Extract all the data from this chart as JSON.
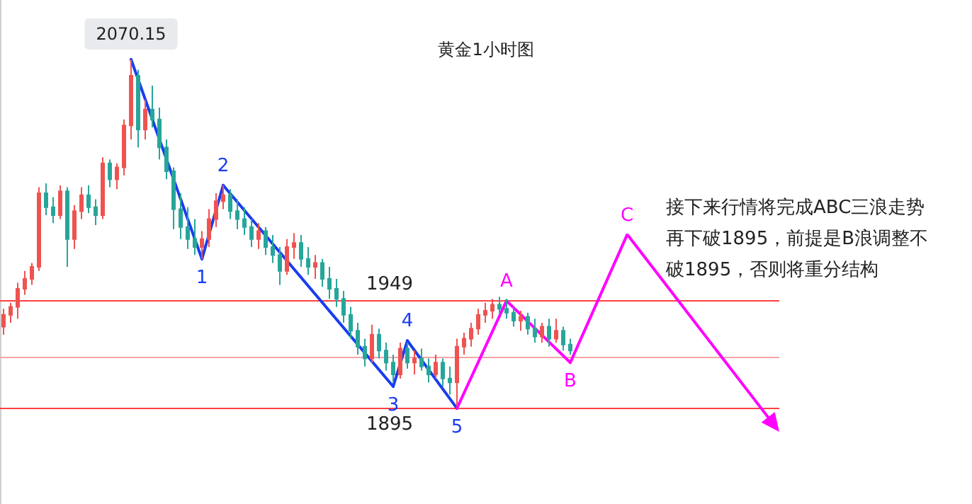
{
  "chart_data": {
    "type": "candlestick",
    "title": "黄金1小时图",
    "categories": [
      null,
      null,
      null,
      null,
      null,
      null,
      null,
      null,
      null,
      null,
      null,
      null,
      null,
      null,
      null,
      null,
      null,
      null,
      null,
      null,
      null,
      null,
      null,
      null,
      null,
      null,
      null,
      null,
      null,
      null,
      null,
      null,
      null,
      null,
      null,
      null,
      null,
      null,
      null,
      null,
      null,
      null,
      null,
      null,
      null,
      null,
      null,
      null,
      null,
      null,
      null,
      null,
      null,
      null,
      null,
      null,
      null,
      null,
      null,
      null,
      null,
      null,
      null,
      null,
      null,
      null,
      null,
      null,
      null,
      null,
      null,
      null,
      null,
      null,
      null,
      null,
      null,
      null,
      null,
      null,
      null,
      null,
      null,
      null,
      null,
      null,
      null,
      null,
      null,
      null,
      null,
      null,
      null,
      null,
      null,
      null,
      null,
      null,
      null,
      null,
      null,
      null,
      null,
      null,
      null,
      null,
      null,
      null,
      null,
      null
    ],
    "series": [
      {
        "ohlc": [
          [
            1936,
            1945,
            1932,
            1942
          ],
          [
            1942,
            1948,
            1938,
            1946
          ],
          [
            1946,
            1958,
            1940,
            1955
          ],
          [
            1955,
            1964,
            1952,
            1960
          ],
          [
            1960,
            1968,
            1957,
            1966
          ],
          [
            1966,
            2006,
            1964,
            2003
          ],
          [
            2003,
            2008,
            1992,
            1996
          ],
          [
            1996,
            2001,
            1988,
            1992
          ],
          [
            1992,
            2007,
            1990,
            2004
          ],
          [
            2004,
            2006,
            1966,
            1980
          ],
          [
            1980,
            1997,
            1975,
            1994
          ],
          [
            1994,
            2006,
            1990,
            2002
          ],
          [
            2002,
            2007,
            1993,
            1996
          ],
          [
            1996,
            2000,
            1987,
            1992
          ],
          [
            1992,
            2021,
            1990,
            2018
          ],
          [
            2018,
            2020,
            2006,
            2010
          ],
          [
            2010,
            2018,
            2005,
            2016
          ],
          [
            2016,
            2040,
            2012,
            2037
          ],
          [
            2037,
            2070.15,
            2030,
            2062
          ],
          [
            2062,
            2065,
            2026,
            2035
          ],
          [
            2035,
            2050,
            2030,
            2045
          ],
          [
            2045,
            2057,
            2036,
            2040
          ],
          [
            2040,
            2046,
            2020,
            2026
          ],
          [
            2026,
            2030,
            2010,
            2014
          ],
          [
            2014,
            2016,
            1985,
            1995
          ],
          [
            1995,
            2003,
            1980,
            1986
          ],
          [
            1986,
            1996,
            1975,
            1980
          ],
          [
            1980,
            1990,
            1972,
            1976
          ],
          [
            1976,
            1984,
            1970,
            1980
          ],
          [
            1980,
            1995,
            1976,
            1990
          ],
          [
            1990,
            2003,
            1986,
            1999
          ],
          [
            1999,
            2007,
            1995,
            2002
          ],
          [
            2002,
            2005,
            1990,
            1994
          ],
          [
            1994,
            2000,
            1985,
            1990
          ],
          [
            1990,
            1996,
            1982,
            1986
          ],
          [
            1986,
            1990,
            1976,
            1980
          ],
          [
            1980,
            1988,
            1975,
            1984
          ],
          [
            1984,
            1986,
            1972,
            1976
          ],
          [
            1976,
            1982,
            1968,
            1972
          ],
          [
            1972,
            1976,
            1957,
            1964
          ],
          [
            1964,
            1980,
            1962,
            1976
          ],
          [
            1976,
            1983,
            1970,
            1978
          ],
          [
            1978,
            1982,
            1966,
            1970
          ],
          [
            1970,
            1976,
            1962,
            1966
          ],
          [
            1966,
            1972,
            1960,
            1968
          ],
          [
            1968,
            1970,
            1956,
            1960
          ],
          [
            1960,
            1966,
            1950,
            1955
          ],
          [
            1955,
            1960,
            1946,
            1950
          ],
          [
            1950,
            1954,
            1938,
            1942
          ],
          [
            1942,
            1946,
            1930,
            1934
          ],
          [
            1934,
            1938,
            1922,
            1926
          ],
          [
            1926,
            1930,
            1916,
            1920
          ],
          [
            1920,
            1937,
            1918,
            1932
          ],
          [
            1932,
            1935,
            1920,
            1924
          ],
          [
            1924,
            1928,
            1914,
            1918
          ],
          [
            1918,
            1922,
            1908,
            1912
          ],
          [
            1912,
            1928,
            1910,
            1925
          ],
          [
            1925,
            1928,
            1915,
            1918
          ],
          [
            1918,
            1924,
            1912,
            1920
          ],
          [
            1920,
            1925,
            1914,
            1916
          ],
          [
            1916,
            1920,
            1908,
            1912
          ],
          [
            1912,
            1922,
            1910,
            1918
          ],
          [
            1918,
            1920,
            1906,
            1910
          ],
          [
            1910,
            1916,
            1902,
            1908
          ],
          [
            1908,
            1930,
            1896,
            1926
          ],
          [
            1926,
            1933,
            1922,
            1930
          ],
          [
            1930,
            1938,
            1926,
            1935
          ],
          [
            1935,
            1945,
            1932,
            1942
          ],
          [
            1942,
            1948,
            1938,
            1944
          ],
          [
            1944,
            1950,
            1940,
            1947
          ],
          [
            1947,
            1951,
            1942,
            1945
          ],
          [
            1945,
            1950,
            1940,
            1943
          ],
          [
            1943,
            1946,
            1936,
            1939
          ],
          [
            1939,
            1944,
            1934,
            1941
          ],
          [
            1941,
            1943,
            1932,
            1935
          ],
          [
            1935,
            1940,
            1928,
            1931
          ],
          [
            1931,
            1938,
            1928,
            1936
          ],
          [
            1936,
            1940,
            1926,
            1930
          ],
          [
            1930,
            1940,
            1928,
            1934
          ],
          [
            1934,
            1936,
            1924,
            1927
          ],
          [
            1927,
            1930,
            1922,
            1924
          ],
          null,
          null,
          null,
          null,
          null,
          null,
          null,
          null,
          null,
          null,
          null,
          null,
          null,
          null,
          null,
          null,
          null,
          null,
          null,
          null,
          null,
          null,
          null,
          null,
          null,
          null,
          null,
          null,
          null
        ],
        "colors": [
          "#ef5350",
          "#ef5350",
          "#ef5350",
          "#ef5350",
          "#ef5350",
          "#ef5350",
          "#26a69a",
          "#26a69a",
          "#ef5350",
          "#26a69a",
          "#ef5350",
          "#ef5350",
          "#26a69a",
          "#26a69a",
          "#ef5350",
          "#26a69a",
          "#ef5350",
          "#ef5350",
          "#ef5350",
          "#26a69a",
          "#ef5350",
          "#26a69a",
          "#26a69a",
          "#26a69a",
          "#26a69a",
          "#26a69a",
          "#26a69a",
          "#26a69a",
          "#ef5350",
          "#ef5350",
          "#ef5350",
          "#ef5350",
          "#26a69a",
          "#26a69a",
          "#26a69a",
          "#26a69a",
          "#ef5350",
          "#26a69a",
          "#26a69a",
          "#26a69a",
          "#ef5350",
          "#ef5350",
          "#26a69a",
          "#26a69a",
          "#ef5350",
          "#26a69a",
          "#26a69a",
          "#26a69a",
          "#26a69a",
          "#26a69a",
          "#26a69a",
          "#26a69a",
          "#ef5350",
          "#26a69a",
          "#26a69a",
          "#26a69a",
          "#ef5350",
          "#26a69a",
          "#ef5350",
          "#26a69a",
          "#26a69a",
          "#ef5350",
          "#26a69a",
          "#26a69a",
          "#ef5350",
          "#ef5350",
          "#ef5350",
          "#ef5350",
          "#ef5350",
          "#ef5350",
          "#26a69a",
          "#26a69a",
          "#26a69a",
          "#ef5350",
          "#26a69a",
          "#26a69a",
          "#ef5350",
          "#26a69a",
          "#ef5350",
          "#26a69a",
          "#26a69a",
          null,
          null,
          null,
          null,
          null,
          null,
          null,
          null,
          null,
          null,
          null,
          null,
          null,
          null,
          null,
          null,
          null,
          null,
          null,
          null,
          null,
          null,
          null,
          null,
          null,
          null,
          null,
          null,
          null
        ]
      },
      {
        "type": "line",
        "color": "#1a3cf0",
        "values": [
          null,
          null,
          null,
          null,
          null,
          null,
          null,
          null,
          null,
          null,
          null,
          null,
          null,
          null,
          null,
          null,
          null,
          null,
          2070.15,
          null,
          null,
          null,
          null,
          null,
          null,
          null,
          null,
          null,
          1970,
          null,
          null,
          2007,
          null,
          null,
          null,
          null,
          null,
          null,
          null,
          null,
          null,
          null,
          null,
          null,
          null,
          null,
          null,
          null,
          null,
          null,
          null,
          null,
          null,
          null,
          null,
          1906,
          null,
          1929,
          null,
          null,
          null,
          null,
          null,
          null,
          1895,
          null,
          null,
          null,
          null,
          null,
          null,
          null,
          null,
          null,
          null,
          null,
          null,
          null,
          null,
          null,
          null,
          null,
          null,
          null,
          null,
          null,
          null,
          null,
          null,
          null,
          null,
          null,
          null,
          null,
          null,
          null,
          null,
          null,
          null,
          null,
          null,
          null,
          null,
          null,
          null,
          null,
          null,
          null,
          null,
          null
        ],
        "value_labels": [
          null,
          null,
          null,
          null,
          null,
          null,
          null,
          null,
          null,
          null,
          null,
          null,
          null,
          null,
          null,
          null,
          null,
          null,
          "2070.15",
          null,
          null,
          null,
          null,
          null,
          null,
          null,
          null,
          null,
          null,
          null,
          null,
          null,
          null,
          null,
          null,
          null,
          null,
          null,
          null,
          null,
          null,
          null,
          null,
          null,
          null,
          null,
          null,
          null,
          null,
          null,
          null,
          null,
          null,
          null,
          null,
          null,
          null,
          null,
          null,
          null,
          null,
          null,
          null,
          null,
          null,
          null,
          null,
          null,
          null,
          null,
          null,
          null,
          null,
          null,
          null,
          null,
          null,
          null,
          null,
          null,
          null,
          null,
          null,
          null,
          null,
          null,
          null,
          null,
          null,
          null,
          null,
          null,
          null,
          null,
          null,
          null,
          null,
          null,
          null,
          null,
          null,
          null,
          null,
          null,
          null,
          null,
          null,
          null,
          null,
          null
        ]
      },
      {
        "type": "line",
        "color": "#ff00ff",
        "values": [
          null,
          null,
          null,
          null,
          null,
          null,
          null,
          null,
          null,
          null,
          null,
          null,
          null,
          null,
          null,
          null,
          null,
          null,
          null,
          null,
          null,
          null,
          null,
          null,
          null,
          null,
          null,
          null,
          null,
          null,
          null,
          null,
          null,
          null,
          null,
          null,
          null,
          null,
          null,
          null,
          null,
          null,
          null,
          null,
          null,
          null,
          null,
          null,
          null,
          null,
          null,
          null,
          null,
          null,
          null,
          null,
          null,
          null,
          null,
          null,
          null,
          null,
          null,
          null,
          1895,
          null,
          null,
          null,
          null,
          null,
          null,
          1949,
          null,
          null,
          null,
          null,
          null,
          null,
          null,
          null,
          1918,
          null,
          null,
          null,
          null,
          null,
          null,
          null,
          1982,
          null,
          null,
          null,
          null,
          null,
          null,
          null,
          null,
          null,
          null,
          null,
          null,
          null,
          null,
          null,
          null,
          null,
          null,
          null,
          null,
          null
        ],
        "value_labels": [
          null,
          null,
          null,
          null,
          null,
          null,
          null,
          null,
          null,
          null,
          null,
          null,
          null,
          null,
          null,
          null,
          null,
          null,
          null,
          null,
          null,
          null,
          null,
          null,
          null,
          null,
          null,
          null,
          null,
          null,
          null,
          null,
          null,
          null,
          null,
          null,
          null,
          null,
          null,
          null,
          null,
          null,
          null,
          null,
          null,
          null,
          null,
          null,
          null,
          null,
          null,
          null,
          null,
          null,
          null,
          null,
          null,
          null,
          null,
          null,
          null,
          null,
          null,
          null,
          null,
          null,
          null,
          null,
          null,
          null,
          null,
          null,
          null,
          null,
          null,
          null,
          null,
          null,
          null,
          null,
          null,
          null,
          null,
          null,
          null,
          null,
          null,
          null,
          null,
          null,
          null,
          null,
          null,
          null,
          null,
          null,
          null,
          null,
          null,
          null,
          null,
          null,
          null,
          null,
          null,
          null,
          null,
          null,
          null,
          null
        ]
      }
    ],
    "ylim": [
      1847,
      2100
    ],
    "tick_labels": false,
    "ref_lines": [
      {
        "axis": "y",
        "value": 1949,
        "label": "1949",
        "color": "#ff4040"
      },
      {
        "axis": "y",
        "value": 1895,
        "label": "1895",
        "color": "#ff4040"
      },
      {
        "axis": "y",
        "value": 1921,
        "color": "#f4a6a6"
      }
    ],
    "annotations": [
      {
        "text": "1",
        "y": 1970
      },
      {
        "text": "2",
        "y": 2007
      },
      {
        "text": "3",
        "y": 1906
      },
      {
        "text": "4",
        "y": 1929
      },
      {
        "text": "5",
        "y": 1895
      },
      {
        "text": "A",
        "y": 1949
      },
      {
        "text": "B",
        "y": 1918
      },
      {
        "text": "C",
        "y": 1982
      },
      "接下来行情将完成ABC三浪走势再下破1895，前提是B浪调整不破1895，否则将重分结构"
    ]
  }
}
